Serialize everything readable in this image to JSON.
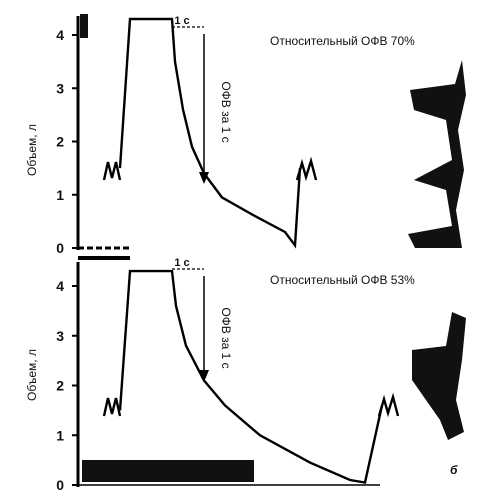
{
  "chart_data": [
    {
      "type": "line",
      "ylabel": "Объем, л",
      "yticks": [
        "0",
        "1",
        "2",
        "3",
        "4"
      ],
      "ylim": [
        0,
        4.5
      ],
      "annotation": "Относительный ОФВ 70%",
      "fev1_label": "ОФВ за 1 с",
      "time_bracket_label": "1 с",
      "fev1_value": 1.4,
      "curve_points": [
        {
          "t": 0,
          "v": 1.5
        },
        {
          "t": 1,
          "v": 4.3
        },
        {
          "t": 2,
          "v": 4.3
        },
        {
          "t": 2.1,
          "v": 3.5
        },
        {
          "t": 2.4,
          "v": 2.6
        },
        {
          "t": 2.8,
          "v": 1.9
        },
        {
          "t": 3,
          "v": 1.4
        },
        {
          "t": 3.4,
          "v": 0.95
        },
        {
          "t": 4,
          "v": 0.6
        },
        {
          "t": 5,
          "v": 0.3
        },
        {
          "t": 5.8,
          "v": 0.05
        },
        {
          "t": 6.2,
          "v": 1.5
        }
      ]
    },
    {
      "type": "line",
      "ylabel": "Объем, л",
      "yticks": [
        "0",
        "1",
        "2",
        "3",
        "4"
      ],
      "ylim": [
        0,
        4.5
      ],
      "annotation": "Относительный ОФВ 53%",
      "fev1_label": "ОФВ за 1 с",
      "time_bracket_label": "1 с",
      "fev1_value": 2.1,
      "panel_letter": "б",
      "curve_points": [
        {
          "t": 0,
          "v": 1.5
        },
        {
          "t": 1,
          "v": 4.3
        },
        {
          "t": 2,
          "v": 4.3
        },
        {
          "t": 2.1,
          "v": 3.6
        },
        {
          "t": 2.5,
          "v": 2.8
        },
        {
          "t": 3,
          "v": 2.1
        },
        {
          "t": 3.5,
          "v": 1.6
        },
        {
          "t": 4.5,
          "v": 1.0
        },
        {
          "t": 6,
          "v": 0.45
        },
        {
          "t": 7.5,
          "v": 0.1
        },
        {
          "t": 8,
          "v": 0.05
        },
        {
          "t": 8.6,
          "v": 1.6
        }
      ]
    }
  ]
}
